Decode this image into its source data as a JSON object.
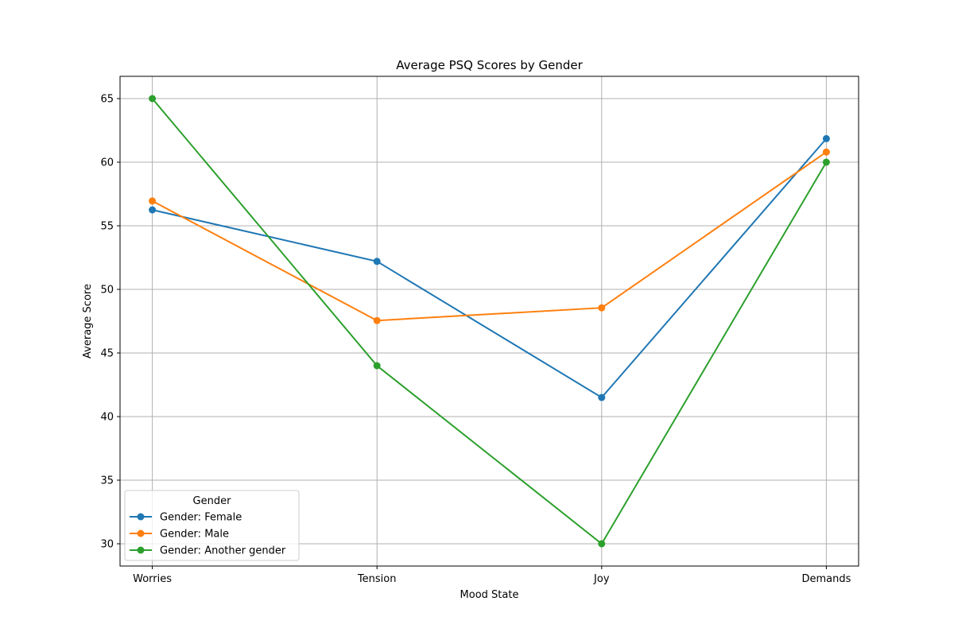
{
  "chart_data": {
    "type": "line",
    "title": "Average PSQ Scores by Gender",
    "xlabel": "Mood State",
    "ylabel": "Average Score",
    "categories": [
      "Worries",
      "Tension",
      "Joy",
      "Demands"
    ],
    "ylim": [
      28.25,
      66.75
    ],
    "yticks": [
      30,
      35,
      40,
      45,
      50,
      55,
      60,
      65
    ],
    "grid": true,
    "legend": {
      "title": "Gender",
      "placement": "lower-left"
    },
    "series": [
      {
        "name": "Gender: Female",
        "color": "#1f77b4",
        "values": [
          56.25,
          52.2,
          41.5,
          61.85
        ]
      },
      {
        "name": "Gender: Male",
        "color": "#ff7f0e",
        "values": [
          56.95,
          47.55,
          48.55,
          60.8
        ]
      },
      {
        "name": "Gender: Another gender",
        "color": "#2ca02c",
        "values": [
          65.0,
          44.0,
          30.0,
          60.0
        ]
      }
    ]
  }
}
